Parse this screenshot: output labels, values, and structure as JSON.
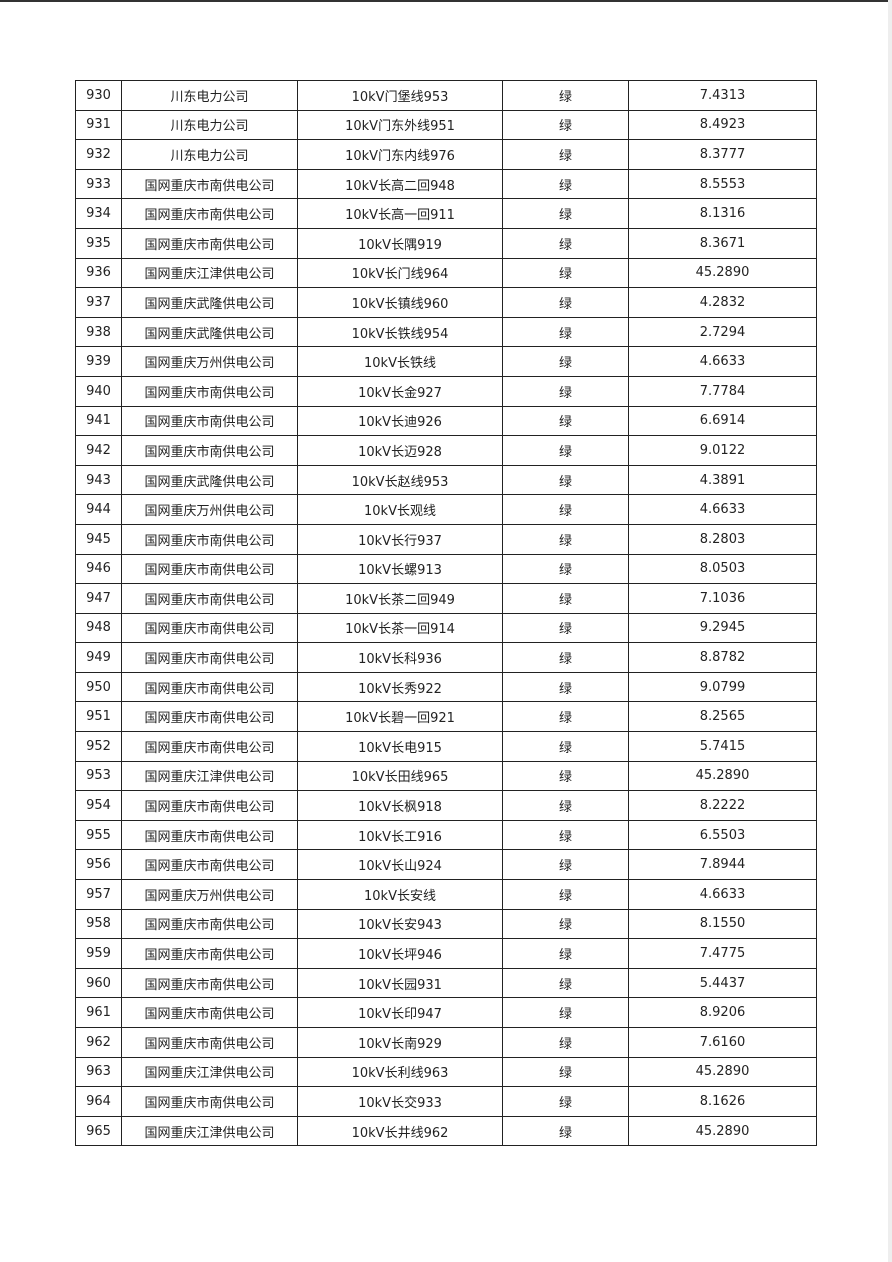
{
  "table": {
    "rows": [
      [
        "930",
        "川东电力公司",
        "10kV门堡线953",
        "绿",
        "7.4313"
      ],
      [
        "931",
        "川东电力公司",
        "10kV门东外线951",
        "绿",
        "8.4923"
      ],
      [
        "932",
        "川东电力公司",
        "10kV门东内线976",
        "绿",
        "8.3777"
      ],
      [
        "933",
        "国网重庆市南供电公司",
        "10kV长高二回948",
        "绿",
        "8.5553"
      ],
      [
        "934",
        "国网重庆市南供电公司",
        "10kV长高一回911",
        "绿",
        "8.1316"
      ],
      [
        "935",
        "国网重庆市南供电公司",
        "10kV长隅919",
        "绿",
        "8.3671"
      ],
      [
        "936",
        "国网重庆江津供电公司",
        "10kV长门线964",
        "绿",
        "45.2890"
      ],
      [
        "937",
        "国网重庆武隆供电公司",
        "10kV长镇线960",
        "绿",
        "4.2832"
      ],
      [
        "938",
        "国网重庆武隆供电公司",
        "10kV长铁线954",
        "绿",
        "2.7294"
      ],
      [
        "939",
        "国网重庆万州供电公司",
        "10kV长铁线",
        "绿",
        "4.6633"
      ],
      [
        "940",
        "国网重庆市南供电公司",
        "10kV长金927",
        "绿",
        "7.7784"
      ],
      [
        "941",
        "国网重庆市南供电公司",
        "10kV长迪926",
        "绿",
        "6.6914"
      ],
      [
        "942",
        "国网重庆市南供电公司",
        "10kV长迈928",
        "绿",
        "9.0122"
      ],
      [
        "943",
        "国网重庆武隆供电公司",
        "10kV长赵线953",
        "绿",
        "4.3891"
      ],
      [
        "944",
        "国网重庆万州供电公司",
        "10kV长观线",
        "绿",
        "4.6633"
      ],
      [
        "945",
        "国网重庆市南供电公司",
        "10kV长行937",
        "绿",
        "8.2803"
      ],
      [
        "946",
        "国网重庆市南供电公司",
        "10kV长螺913",
        "绿",
        "8.0503"
      ],
      [
        "947",
        "国网重庆市南供电公司",
        "10kV长茶二回949",
        "绿",
        "7.1036"
      ],
      [
        "948",
        "国网重庆市南供电公司",
        "10kV长茶一回914",
        "绿",
        "9.2945"
      ],
      [
        "949",
        "国网重庆市南供电公司",
        "10kV长科936",
        "绿",
        "8.8782"
      ],
      [
        "950",
        "国网重庆市南供电公司",
        "10kV长秀922",
        "绿",
        "9.0799"
      ],
      [
        "951",
        "国网重庆市南供电公司",
        "10kV长碧一回921",
        "绿",
        "8.2565"
      ],
      [
        "952",
        "国网重庆市南供电公司",
        "10kV长电915",
        "绿",
        "5.7415"
      ],
      [
        "953",
        "国网重庆江津供电公司",
        "10kV长田线965",
        "绿",
        "45.2890"
      ],
      [
        "954",
        "国网重庆市南供电公司",
        "10kV长枫918",
        "绿",
        "8.2222"
      ],
      [
        "955",
        "国网重庆市南供电公司",
        "10kV长工916",
        "绿",
        "6.5503"
      ],
      [
        "956",
        "国网重庆市南供电公司",
        "10kV长山924",
        "绿",
        "7.8944"
      ],
      [
        "957",
        "国网重庆万州供电公司",
        "10kV长安线",
        "绿",
        "4.6633"
      ],
      [
        "958",
        "国网重庆市南供电公司",
        "10kV长安943",
        "绿",
        "8.1550"
      ],
      [
        "959",
        "国网重庆市南供电公司",
        "10kV长坪946",
        "绿",
        "7.4775"
      ],
      [
        "960",
        "国网重庆市南供电公司",
        "10kV长园931",
        "绿",
        "5.4437"
      ],
      [
        "961",
        "国网重庆市南供电公司",
        "10kV长印947",
        "绿",
        "8.9206"
      ],
      [
        "962",
        "国网重庆市南供电公司",
        "10kV长南929",
        "绿",
        "7.6160"
      ],
      [
        "963",
        "国网重庆江津供电公司",
        "10kV长利线963",
        "绿",
        "45.2890"
      ],
      [
        "964",
        "国网重庆市南供电公司",
        "10kV长交933",
        "绿",
        "8.1626"
      ],
      [
        "965",
        "国网重庆江津供电公司",
        "10kV长井线962",
        "绿",
        "45.2890"
      ]
    ]
  }
}
